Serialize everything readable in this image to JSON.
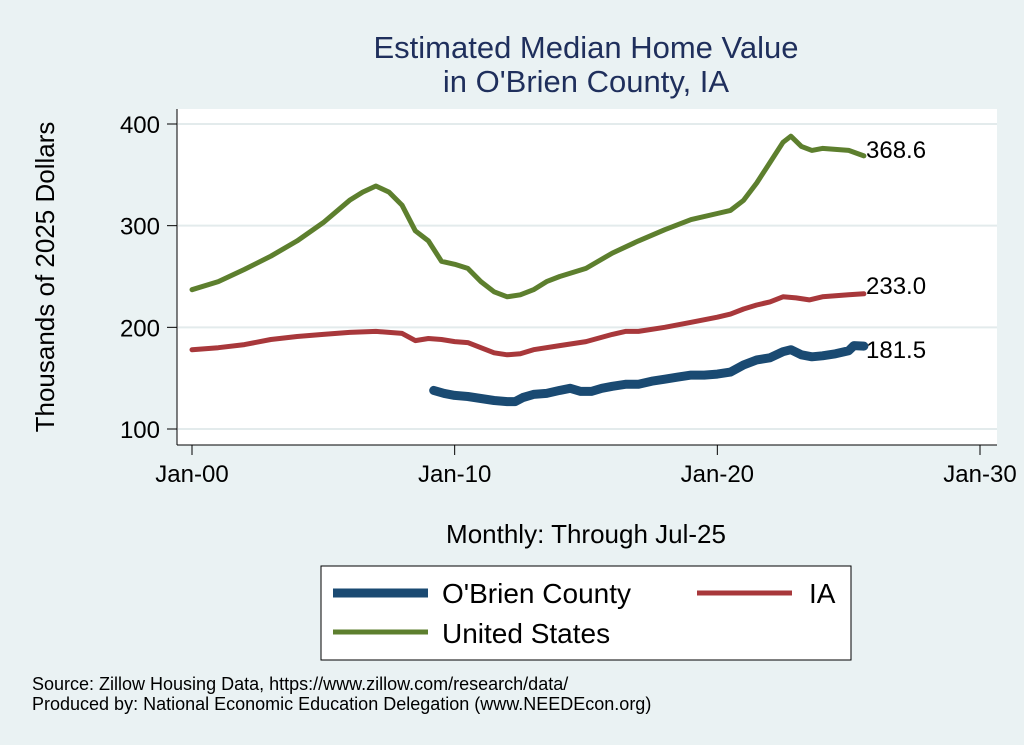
{
  "chart_data": {
    "type": "line",
    "title_lines": [
      "Estimated Median Home Value",
      "in O'Brien County, IA"
    ],
    "ylabel": "Thousands of 2025 Dollars",
    "xlabel": "Monthly: Through Jul-25",
    "ylim": [
      100,
      400
    ],
    "yticks": [
      100,
      200,
      300,
      400
    ],
    "xlim": [
      2000,
      2030
    ],
    "xticks": [
      {
        "value": 2000,
        "label": "Jan-00"
      },
      {
        "value": 2010,
        "label": "Jan-10"
      },
      {
        "value": 2020,
        "label": "Jan-20"
      },
      {
        "value": 2030,
        "label": "Jan-30"
      }
    ],
    "grid": true,
    "series": [
      {
        "name": "O'Brien County",
        "color": "#1a4a72",
        "end_label": "181.5",
        "points": [
          [
            2009.2,
            138
          ],
          [
            2009.6,
            135
          ],
          [
            2010.0,
            133
          ],
          [
            2010.5,
            132
          ],
          [
            2011.0,
            130
          ],
          [
            2011.5,
            128
          ],
          [
            2012.0,
            127
          ],
          [
            2012.3,
            127
          ],
          [
            2012.6,
            131
          ],
          [
            2013.0,
            134
          ],
          [
            2013.5,
            135
          ],
          [
            2014.0,
            138
          ],
          [
            2014.4,
            140
          ],
          [
            2014.8,
            137
          ],
          [
            2015.2,
            137
          ],
          [
            2015.6,
            140
          ],
          [
            2016.0,
            142
          ],
          [
            2016.5,
            144
          ],
          [
            2017.0,
            144
          ],
          [
            2017.5,
            147
          ],
          [
            2018.0,
            149
          ],
          [
            2018.5,
            151
          ],
          [
            2019.0,
            153
          ],
          [
            2019.5,
            153
          ],
          [
            2020.0,
            154
          ],
          [
            2020.5,
            156
          ],
          [
            2021.0,
            163
          ],
          [
            2021.5,
            168
          ],
          [
            2022.0,
            170
          ],
          [
            2022.5,
            176
          ],
          [
            2022.8,
            178
          ],
          [
            2023.2,
            173
          ],
          [
            2023.6,
            171
          ],
          [
            2024.0,
            172
          ],
          [
            2024.5,
            174
          ],
          [
            2025.0,
            177
          ],
          [
            2025.2,
            182
          ],
          [
            2025.58,
            181.5
          ]
        ]
      },
      {
        "name": "IA",
        "color": "#a8383b",
        "end_label": "233.0",
        "points": [
          [
            2000.0,
            178
          ],
          [
            2001.0,
            180
          ],
          [
            2002.0,
            183
          ],
          [
            2003.0,
            188
          ],
          [
            2004.0,
            191
          ],
          [
            2005.0,
            193
          ],
          [
            2006.0,
            195
          ],
          [
            2007.0,
            196
          ],
          [
            2008.0,
            194
          ],
          [
            2008.5,
            187
          ],
          [
            2009.0,
            189
          ],
          [
            2009.5,
            188
          ],
          [
            2010.0,
            186
          ],
          [
            2010.5,
            185
          ],
          [
            2011.0,
            180
          ],
          [
            2011.5,
            175
          ],
          [
            2012.0,
            173
          ],
          [
            2012.5,
            174
          ],
          [
            2013.0,
            178
          ],
          [
            2014.0,
            182
          ],
          [
            2015.0,
            186
          ],
          [
            2016.0,
            193
          ],
          [
            2016.5,
            196
          ],
          [
            2017.0,
            196
          ],
          [
            2018.0,
            200
          ],
          [
            2019.0,
            205
          ],
          [
            2020.0,
            210
          ],
          [
            2020.5,
            213
          ],
          [
            2021.0,
            218
          ],
          [
            2021.5,
            222
          ],
          [
            2022.0,
            225
          ],
          [
            2022.5,
            230
          ],
          [
            2023.0,
            229
          ],
          [
            2023.5,
            227
          ],
          [
            2024.0,
            230
          ],
          [
            2024.5,
            231
          ],
          [
            2025.0,
            232
          ],
          [
            2025.58,
            233
          ]
        ]
      },
      {
        "name": "United States",
        "color": "#5d7f2e",
        "end_label": "368.6",
        "points": [
          [
            2000.0,
            237
          ],
          [
            2001.0,
            245
          ],
          [
            2002.0,
            257
          ],
          [
            2003.0,
            270
          ],
          [
            2004.0,
            285
          ],
          [
            2005.0,
            303
          ],
          [
            2006.0,
            325
          ],
          [
            2006.5,
            333
          ],
          [
            2007.0,
            339
          ],
          [
            2007.5,
            333
          ],
          [
            2008.0,
            320
          ],
          [
            2008.5,
            295
          ],
          [
            2009.0,
            285
          ],
          [
            2009.5,
            265
          ],
          [
            2010.0,
            262
          ],
          [
            2010.5,
            258
          ],
          [
            2011.0,
            245
          ],
          [
            2011.5,
            235
          ],
          [
            2012.0,
            230
          ],
          [
            2012.5,
            232
          ],
          [
            2013.0,
            237
          ],
          [
            2013.5,
            245
          ],
          [
            2014.0,
            250
          ],
          [
            2015.0,
            258
          ],
          [
            2016.0,
            273
          ],
          [
            2017.0,
            285
          ],
          [
            2018.0,
            296
          ],
          [
            2019.0,
            306
          ],
          [
            2020.0,
            312
          ],
          [
            2020.5,
            315
          ],
          [
            2021.0,
            325
          ],
          [
            2021.5,
            342
          ],
          [
            2022.0,
            362
          ],
          [
            2022.5,
            382
          ],
          [
            2022.8,
            388
          ],
          [
            2023.2,
            378
          ],
          [
            2023.6,
            374
          ],
          [
            2024.0,
            376
          ],
          [
            2024.5,
            375
          ],
          [
            2025.0,
            374
          ],
          [
            2025.58,
            368.6
          ]
        ]
      }
    ],
    "legend": [
      "O'Brien County",
      "IA",
      "United States"
    ],
    "source_lines": [
      "Source: Zillow Housing Data, https://www.zillow.com/research/data/",
      "Produced by: National Economic Education Delegation (www.NEEDEcon.org)"
    ]
  }
}
